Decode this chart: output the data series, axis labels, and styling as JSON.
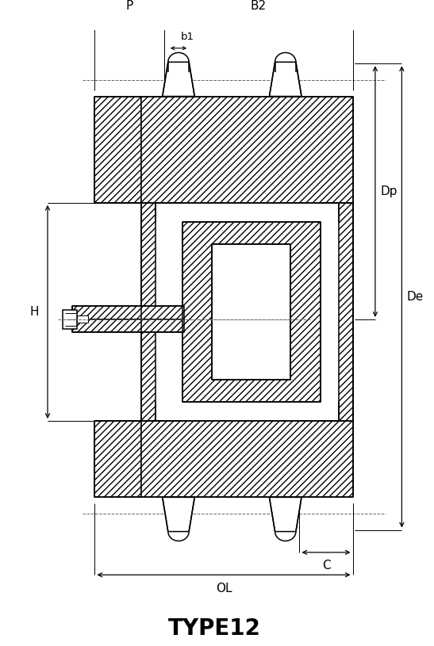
{
  "title": "TYPE12",
  "title_fontsize": 20,
  "background_color": "#ffffff",
  "line_color": "#000000",
  "dashed_color": "#666666",
  "labels": {
    "P": "P",
    "B2": "B2",
    "b1": "b1",
    "H": "H",
    "Dp": "Dp",
    "De": "De",
    "C": "C",
    "OL": "OL"
  },
  "fig_width": 5.47,
  "fig_height": 8.15,
  "dpi": 100
}
